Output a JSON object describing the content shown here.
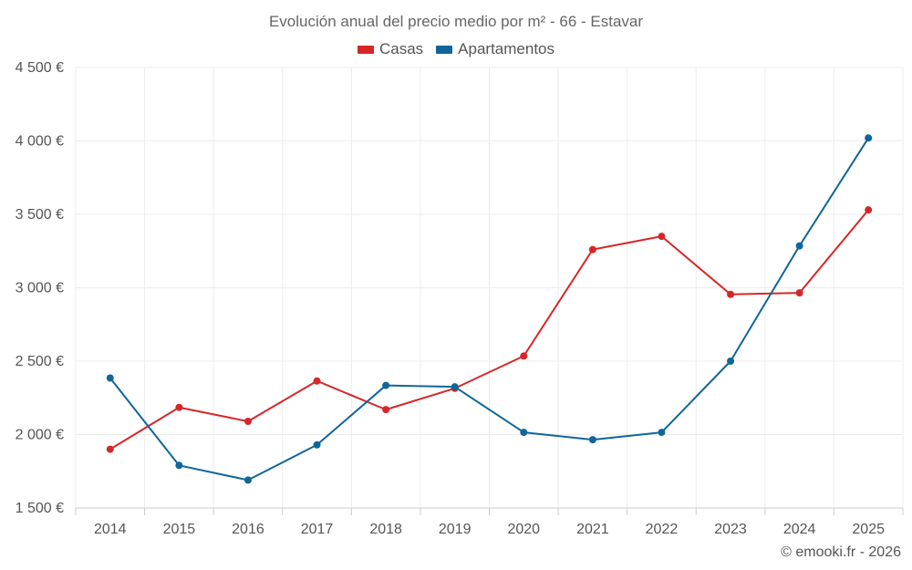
{
  "chart_data": {
    "type": "line",
    "title": "Evolución anual del precio medio por m² - 66 - Estavar",
    "categories": [
      "2014",
      "2015",
      "2016",
      "2017",
      "2018",
      "2019",
      "2020",
      "2021",
      "2022",
      "2023",
      "2024",
      "2025"
    ],
    "series": [
      {
        "name": "Casas",
        "color": "#d62728",
        "values": [
          1900,
          2185,
          2090,
          2365,
          2170,
          2315,
          2535,
          3260,
          3350,
          2955,
          2965,
          3530
        ]
      },
      {
        "name": "Apartamentos",
        "color": "#0f6699",
        "values": [
          2385,
          1790,
          1690,
          1930,
          2335,
          2325,
          2015,
          1965,
          2015,
          2500,
          3285,
          4020
        ]
      }
    ],
    "ylim": [
      1500,
      4500
    ],
    "yticks": [
      1500,
      2000,
      2500,
      3000,
      3500,
      4000,
      4500
    ],
    "ytick_labels": [
      "1 500 €",
      "2 000 €",
      "2 500 €",
      "3 000 €",
      "3 500 €",
      "4 000 €",
      "4 500 €"
    ],
    "xlabel": "",
    "ylabel": "",
    "grid": true,
    "legend": "top-center"
  },
  "copyright": "© emooki.fr - 2026"
}
